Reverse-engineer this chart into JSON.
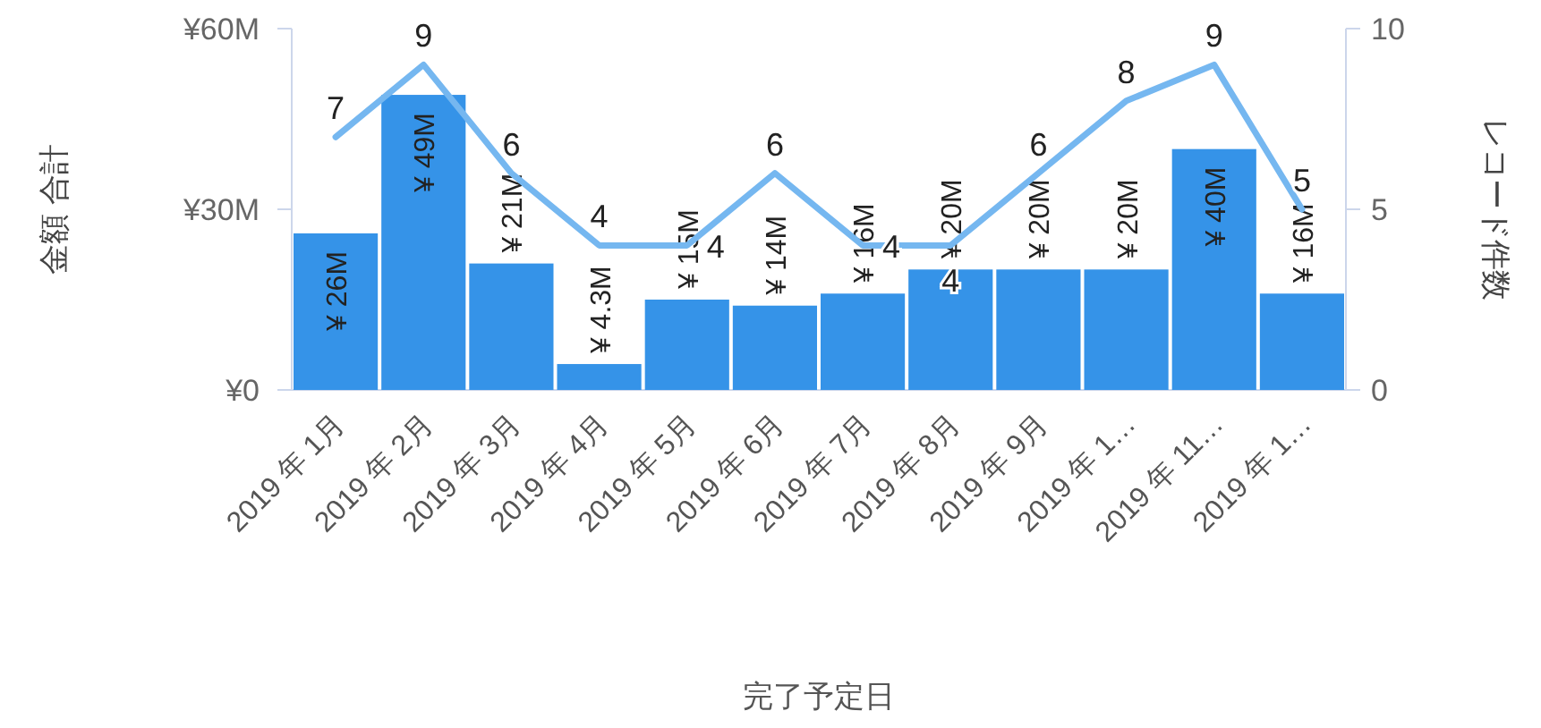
{
  "chart_data": {
    "type": "bar",
    "xlabel": "完了予定日",
    "ylabel": "金額 合計",
    "y2label": "レコード件数",
    "categories": [
      "2019 年 1月",
      "2019 年 2月",
      "2019 年 3月",
      "2019 年 4月",
      "2019 年 5月",
      "2019 年 6月",
      "2019 年 7月",
      "2019 年 8月",
      "2019 年 9月",
      "2019 年 1…",
      "2019 年 11…",
      "2019 年 1…"
    ],
    "series": [
      {
        "color": "#3593e8",
        "values": [
          26,
          49,
          21,
          4.3,
          15,
          14,
          16,
          20,
          20,
          20,
          40,
          16
        ],
        "value_labels": [
          "¥ 26M",
          "¥ 49M",
          "¥ 21M",
          "¥ 4.3M",
          "¥ 15M",
          "¥ 14M",
          "¥ 16M",
          "¥ 20M",
          "¥ 20M",
          "¥ 20M",
          "¥ 40M",
          "¥ 16M"
        ]
      },
      {
        "type": "line",
        "axis": "y2",
        "color": "#75b7f0",
        "values": [
          7,
          9,
          6,
          4,
          4,
          6,
          4,
          4,
          6,
          8,
          9,
          5
        ],
        "value_labels": [
          "7",
          "9",
          "6",
          "4",
          "4",
          "6",
          "4",
          "4",
          "6",
          "8",
          "9",
          "5"
        ]
      }
    ],
    "ylim": [
      0,
      60
    ],
    "yticks": [
      {
        "value": 0,
        "label": "¥0"
      },
      {
        "value": 30,
        "label": "¥30M"
      },
      {
        "value": 60,
        "label": "¥60M"
      }
    ],
    "y2lim": [
      0,
      10
    ],
    "y2ticks": [
      0,
      5,
      10
    ],
    "grid": false,
    "marker": "none",
    "line_style": "solid"
  }
}
